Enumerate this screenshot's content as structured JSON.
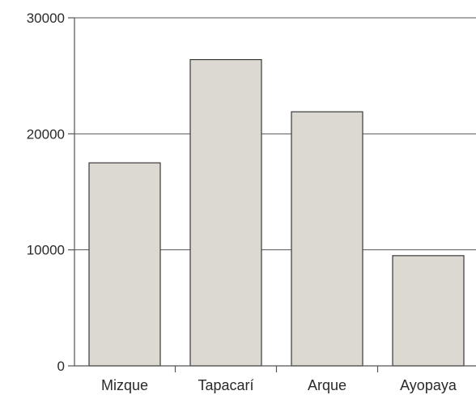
{
  "chart_data": {
    "type": "bar",
    "categories": [
      "Mizque",
      "Tapacarí",
      "Arque",
      "Ayopaya"
    ],
    "values": [
      17500,
      26400,
      21900,
      9500
    ],
    "ylim": [
      0,
      30000
    ],
    "yticks": [
      0,
      10000,
      20000,
      30000
    ],
    "ytick_labels": [
      "0",
      "10000",
      "20000",
      "30000"
    ],
    "title": "",
    "xlabel": "",
    "ylabel": "",
    "grid": true,
    "legend": "none",
    "colors": {
      "bar_fill": "#dcd9d2",
      "bar_stroke": "#3a3a3a",
      "grid": "#555555",
      "text": "#2a2a2a"
    }
  }
}
